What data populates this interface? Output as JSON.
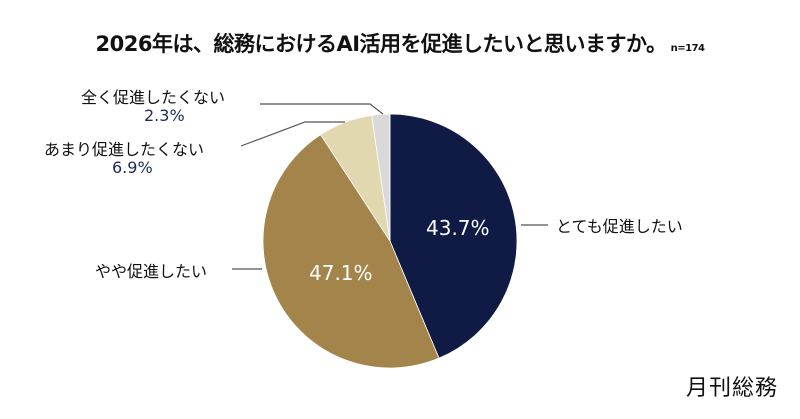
{
  "header": {
    "title": "2026年は、総務におけるAI活用を促進したいと思いますか。",
    "sample_size": "n=174"
  },
  "brand": {
    "logo_text": "月刊総務"
  },
  "colors": {
    "very_much": "#0f1b45",
    "somewhat": "#a3844a",
    "not_much": "#e2d8b0",
    "not_at_all": "#d9d9d9"
  },
  "slices": [
    {
      "label": "とても促進したい",
      "value_label": "43.7%"
    },
    {
      "label": "やや促進したい",
      "value_label": "47.1%"
    },
    {
      "label": "あまり促進したくない",
      "value_label": "6.9%"
    },
    {
      "label": "全く促進したくない",
      "value_label": "2.3%"
    }
  ],
  "chart_data": {
    "type": "pie",
    "title": "2026年は、総務におけるAI活用を促進したいと思いますか。",
    "subtitle": "n=174",
    "categories": [
      "とても促進したい",
      "やや促進したい",
      "あまり促進したくない",
      "全く促進したくない"
    ],
    "values": [
      43.7,
      47.1,
      6.9,
      2.3
    ],
    "unit": "%",
    "colors": [
      "#0f1b45",
      "#a3844a",
      "#e2d8b0",
      "#d9d9d9"
    ],
    "start_angle": "12 o'clock, clockwise",
    "legend": "none (callout labels)"
  }
}
